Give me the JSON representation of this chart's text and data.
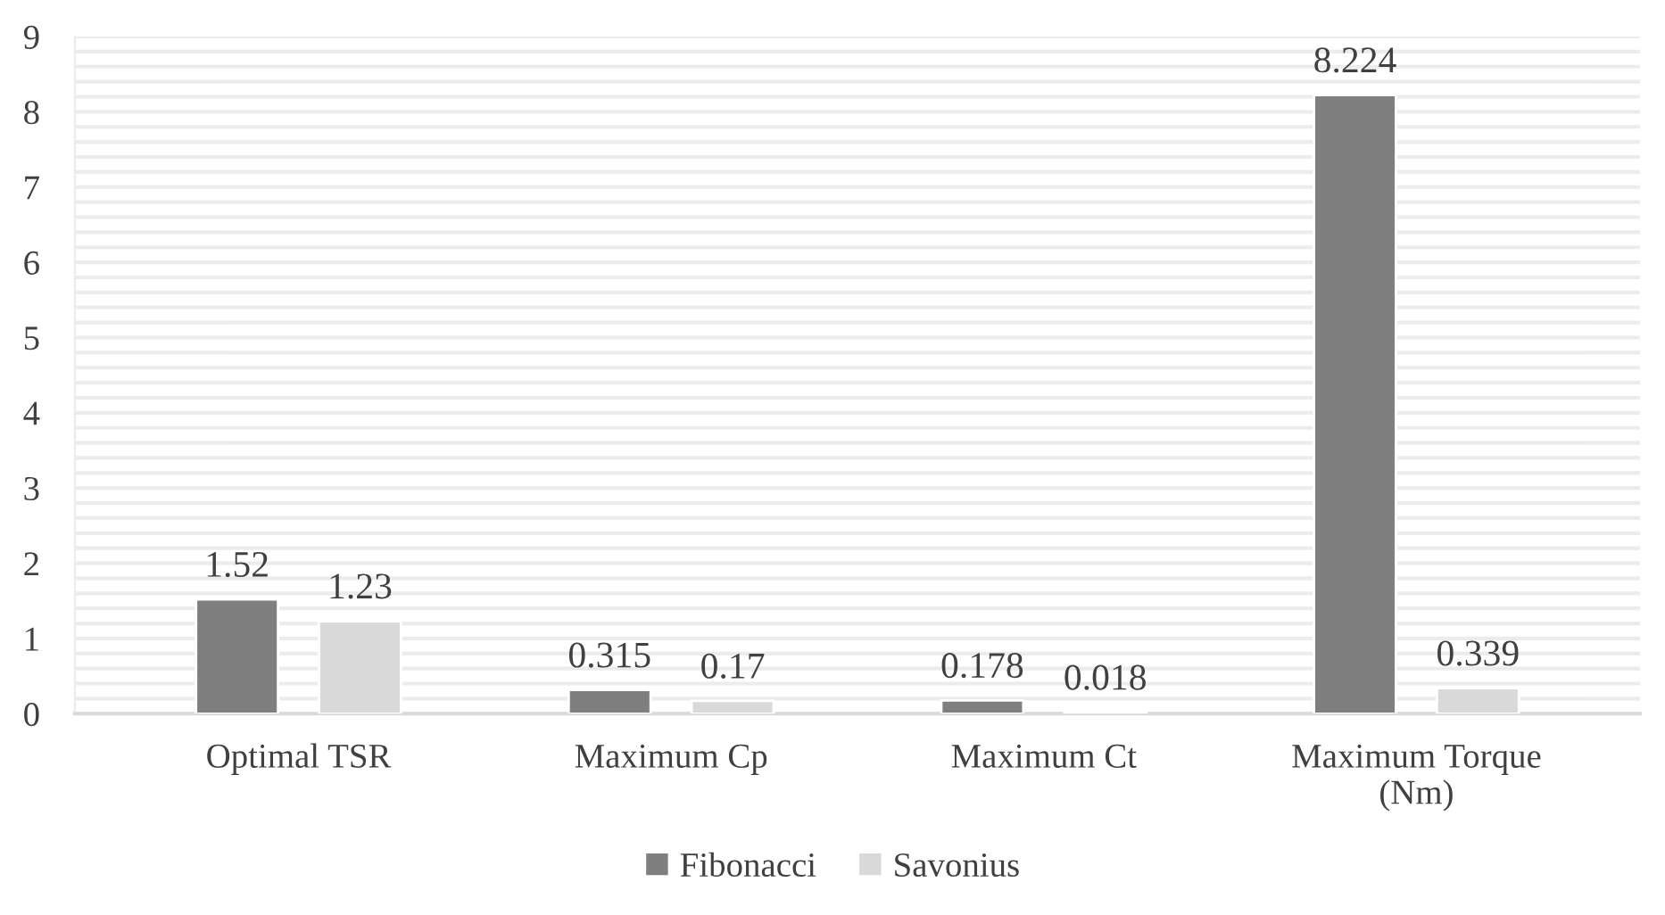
{
  "chart_data": {
    "type": "bar",
    "categories": [
      "Optimal TSR",
      "Maximum Cp",
      "Maximum Ct",
      "Maximum Torque (Nm)"
    ],
    "series": [
      {
        "name": "Fibonacci",
        "color": "#7f7f7f",
        "values": [
          1.52,
          0.315,
          0.178,
          8.224
        ]
      },
      {
        "name": "Savonius",
        "color": "#d9d9d9",
        "values": [
          1.23,
          0.17,
          0.018,
          0.339
        ]
      }
    ],
    "ylim": [
      0,
      9
    ],
    "yticks": [
      0,
      1,
      2,
      3,
      4,
      5,
      6,
      7,
      8,
      9
    ],
    "data_labels": true,
    "grid": "y",
    "legend": "bottom"
  }
}
